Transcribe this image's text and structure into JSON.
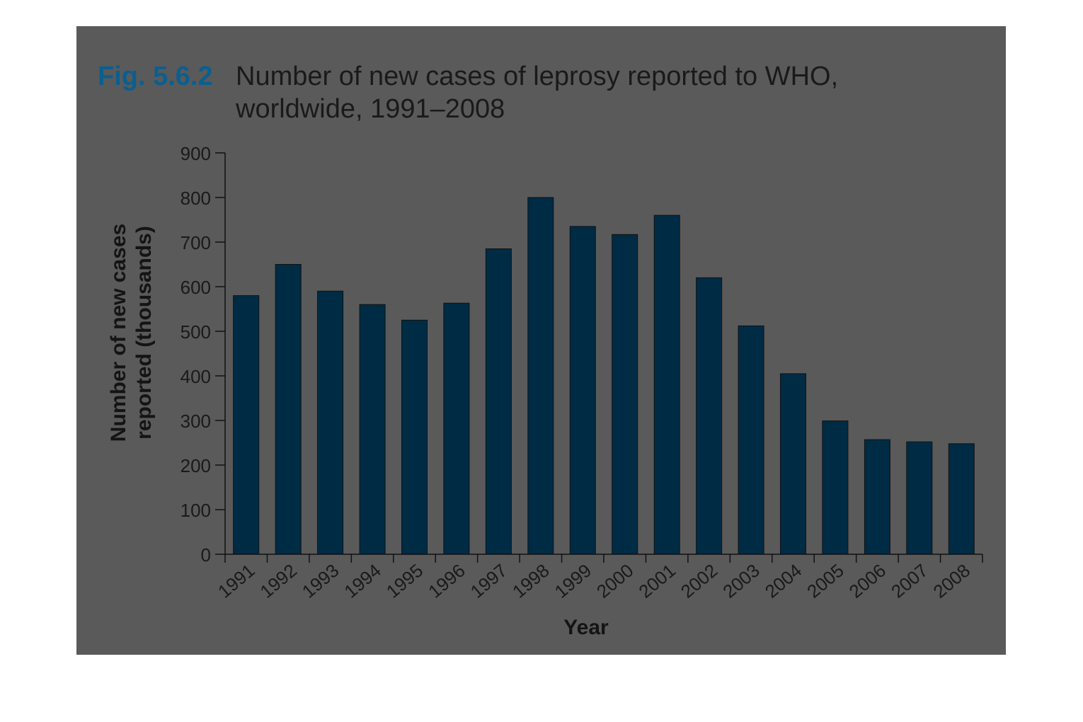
{
  "figure": {
    "label": "Fig. 5.6.2",
    "title_line1": "Number of new cases of leprosy reported to WHO,",
    "title_line2": "worldwide, 1991–2008"
  },
  "colors": {
    "panel": "#5a5a5a",
    "bar": "#002b45",
    "label_blue": "#0a5f8f",
    "accent_cyan": "#00b5f0",
    "text": "#1a1a1a"
  },
  "chart_data": {
    "type": "bar",
    "categories": [
      "1991",
      "1992",
      "1993",
      "1994",
      "1995",
      "1996",
      "1997",
      "1998",
      "1999",
      "2000",
      "2001",
      "2002",
      "2003",
      "2004",
      "2005",
      "2006",
      "2007",
      "2008"
    ],
    "values": [
      580,
      650,
      590,
      560,
      525,
      563,
      685,
      800,
      735,
      717,
      760,
      620,
      512,
      405,
      299,
      257,
      252,
      248
    ],
    "xlabel": "Year",
    "ylabel_line1": "Number of new cases",
    "ylabel_line2": "reported (thousands)",
    "ylim": [
      0,
      900
    ],
    "yticks": [
      0,
      100,
      200,
      300,
      400,
      500,
      600,
      700,
      800,
      900
    ],
    "grid": false,
    "legend": "none"
  }
}
